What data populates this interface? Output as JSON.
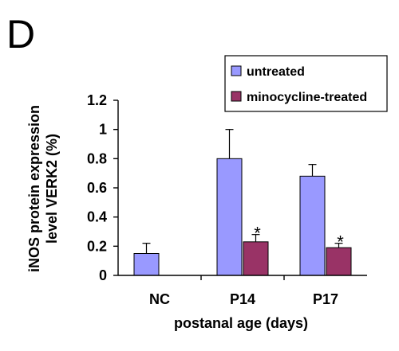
{
  "panel_label": "D",
  "chart_data": {
    "type": "bar",
    "categories": [
      "NC",
      "P14",
      "P17"
    ],
    "series": [
      {
        "name": "untreated",
        "color": "#9999ff",
        "values": [
          0.15,
          0.8,
          0.68
        ],
        "errors": [
          0.07,
          0.2,
          0.08
        ]
      },
      {
        "name": "minocycline-treated",
        "color": "#993366",
        "values": [
          null,
          0.23,
          0.19
        ],
        "errors": [
          null,
          0.05,
          0.03
        ]
      }
    ],
    "annotations": [
      {
        "category": "P14",
        "series": "minocycline-treated",
        "text": "*"
      },
      {
        "category": "P17",
        "series": "minocycline-treated",
        "text": "*"
      }
    ],
    "ylabel_line1": "iNOS protein expression",
    "ylabel_line2": "level VERK2 (%)",
    "xlabel": "postanal age (days)",
    "ylim": [
      0,
      1.2
    ],
    "yticks": [
      "0",
      "0.2",
      "0.4",
      "0.6",
      "0.8",
      "1",
      "1.2"
    ],
    "legend_position": "top-right",
    "grid": false
  }
}
